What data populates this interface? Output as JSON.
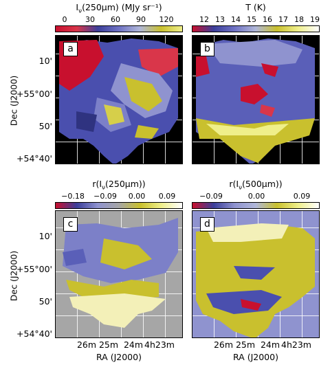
{
  "figure": {
    "panels": [
      {
        "letter": "a",
        "colorbar_title_main": "I",
        "colorbar_title_sub": "ν",
        "colorbar_title_rest": "(250μm) (MJy sr⁻¹)",
        "ticks": [
          "0",
          "30",
          "60",
          "90",
          "120"
        ],
        "colors": [
          "#c8102e",
          "#d9364a",
          "#3c3f9a",
          "#6f72c4",
          "#b0b7d9",
          "#c9c02e",
          "#efef8a"
        ]
      },
      {
        "letter": "b",
        "colorbar_title_main": "T (K)",
        "colorbar_title_sub": "",
        "colorbar_title_rest": "",
        "ticks": [
          "12",
          "13",
          "14",
          "15",
          "16",
          "17",
          "18",
          "19"
        ],
        "colors": [
          "#c8102e",
          "#3c3f9a",
          "#6f72c4",
          "#b0b7d9",
          "#c9c02e",
          "#efef8a",
          "#ffffff"
        ]
      },
      {
        "letter": "c",
        "colorbar_title_main": "r(I",
        "colorbar_title_sub": "ν",
        "colorbar_title_rest": "(250μm))",
        "ticks": [
          "−0.18",
          "−0.09",
          "0.00",
          "0.09"
        ],
        "colors": [
          "#c8102e",
          "#3c3f9a",
          "#8f93cf",
          "#a6a6a6",
          "#c9c02e",
          "#efef8a",
          "#ffffff"
        ]
      },
      {
        "letter": "d",
        "colorbar_title_main": "r(I",
        "colorbar_title_sub": "ν",
        "colorbar_title_rest": "(500μm))",
        "ticks": [
          "−0.09",
          "0.00",
          "0.09"
        ],
        "colors": [
          "#c8102e",
          "#3c3f9a",
          "#8f93cf",
          "#b0b7d9",
          "#c9c02e",
          "#efef8a",
          "#ffffff"
        ]
      }
    ],
    "axes": {
      "y_label": "Dec (J2000)",
      "y_ticks": [
        "10'",
        "+55°00'",
        "50'",
        "+54°40'"
      ],
      "x_label": "RA (J2000)",
      "x_ticks": [
        "26m",
        "25m",
        "24m",
        "4h23m"
      ]
    }
  }
}
